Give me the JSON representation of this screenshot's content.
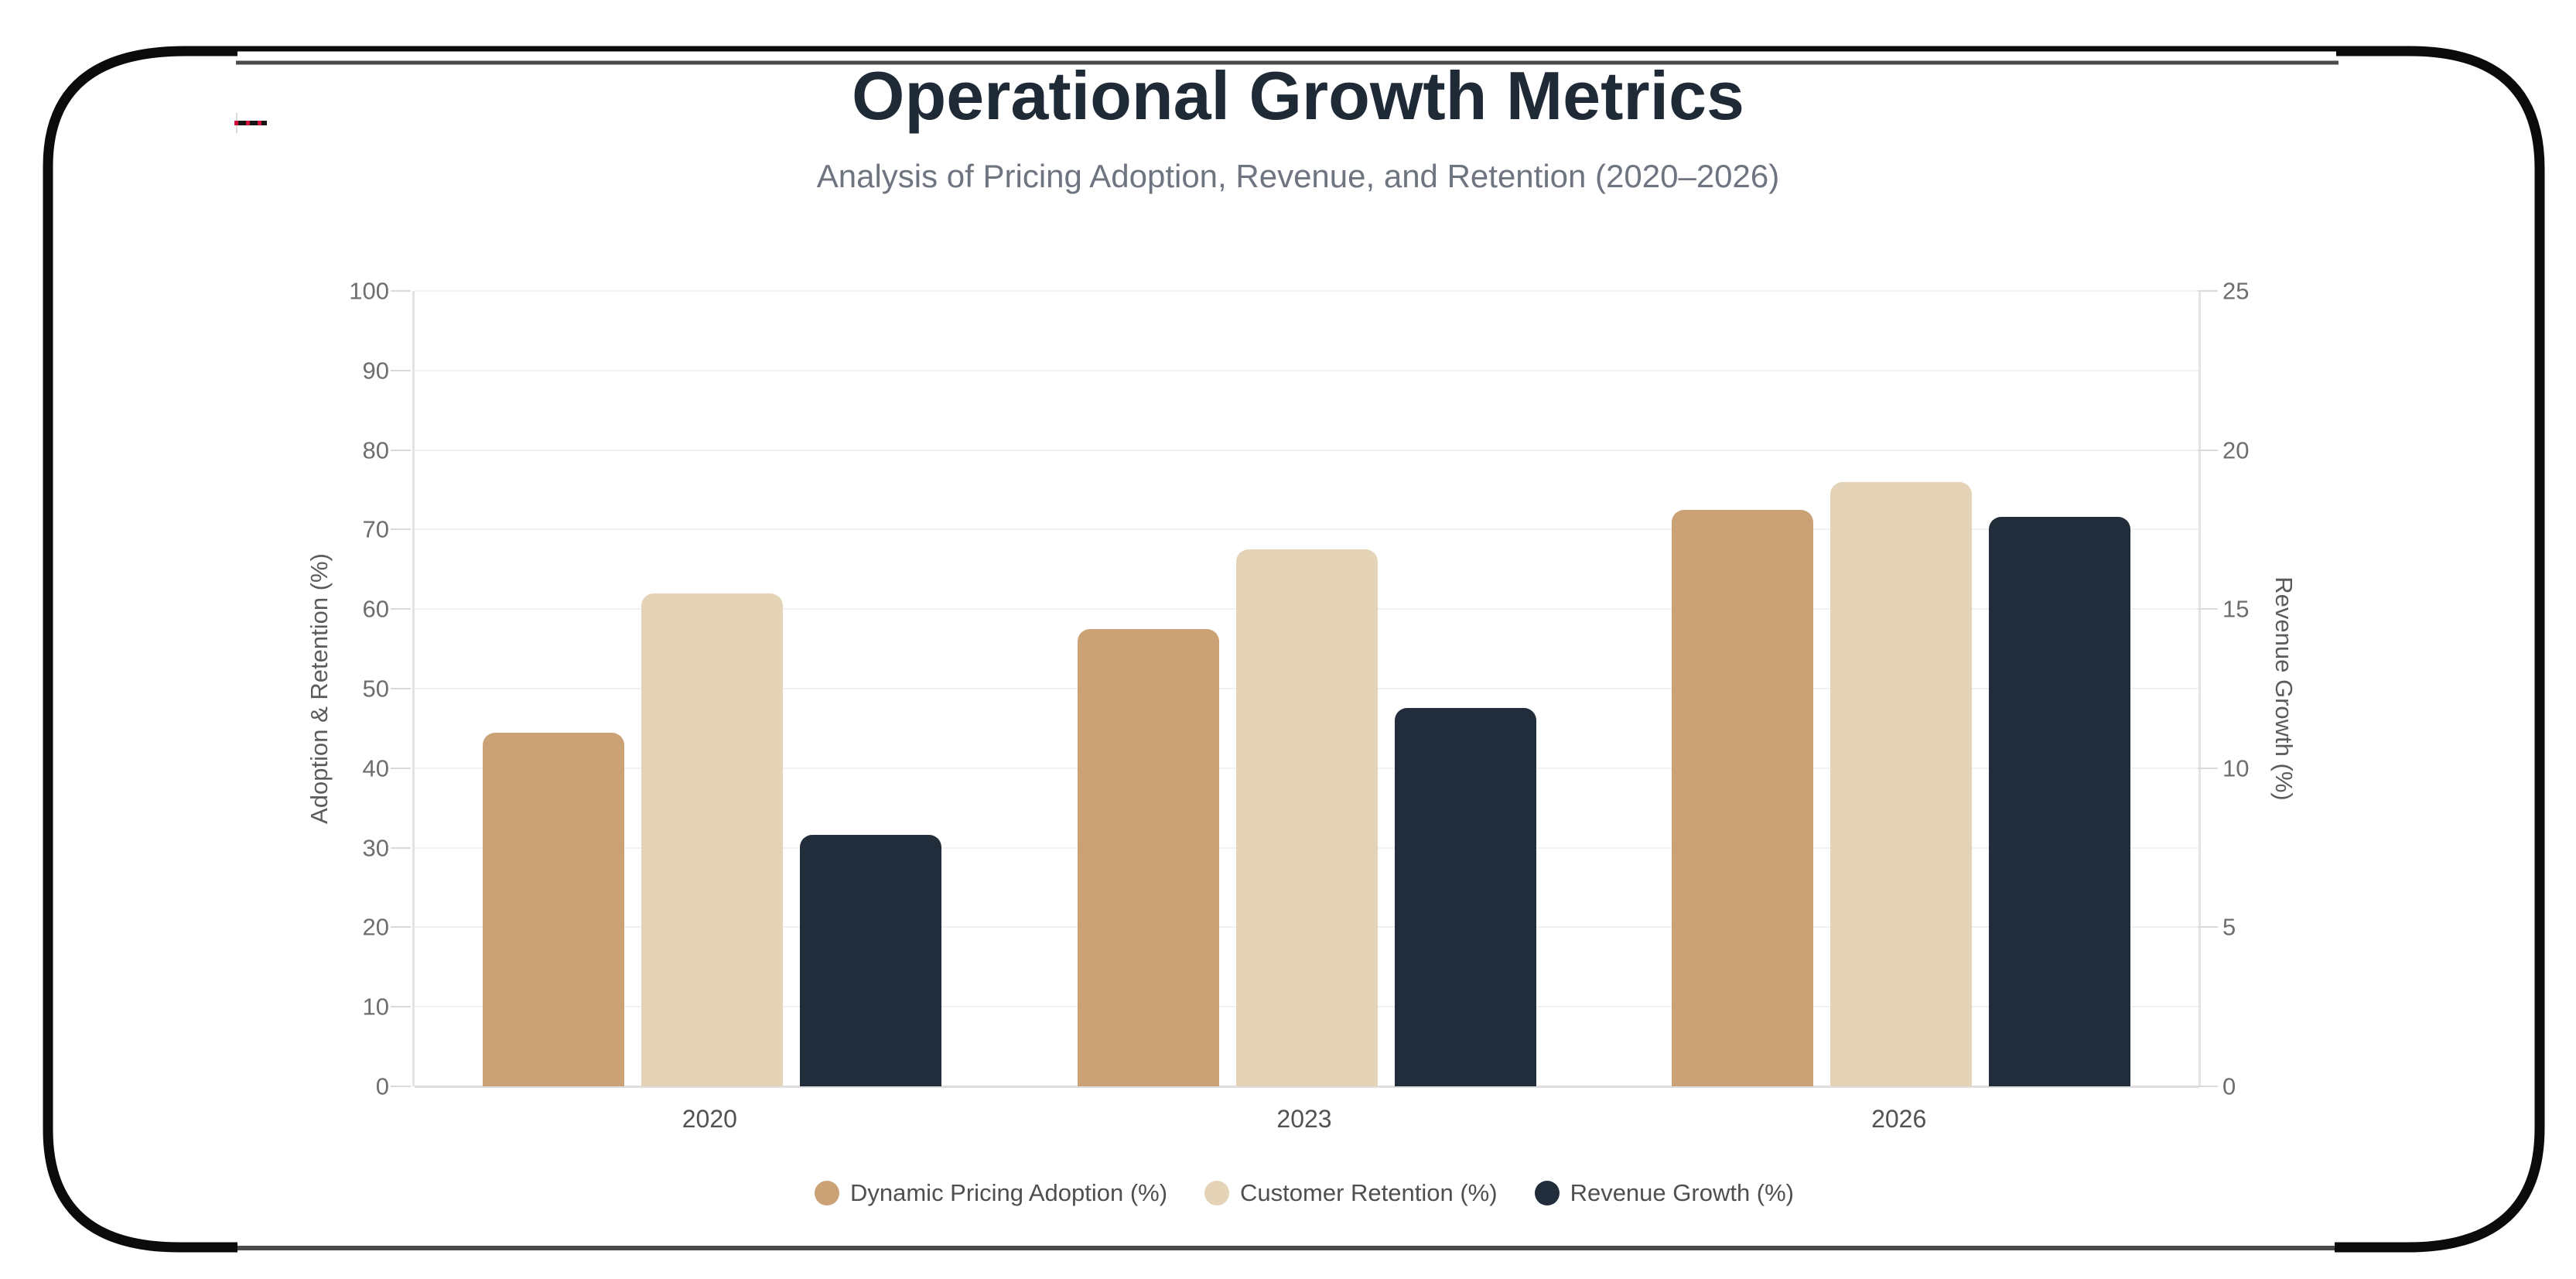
{
  "page": {
    "title": "Operational Growth Metrics",
    "subtitle": "Analysis of Pricing Adoption, Revenue, and Retention (2020–2026)"
  },
  "chart_data": {
    "type": "bar",
    "title": "Operational Growth Metrics",
    "subtitle": "Analysis of Pricing Adoption, Revenue, and Retention (2020–2026)",
    "categories": [
      "2020",
      "2023",
      "2026"
    ],
    "series": [
      {
        "name": "Dynamic Pricing Adoption (%)",
        "axis": "left",
        "color": "#cba176",
        "values": [
          44.5,
          57.5,
          72.5
        ]
      },
      {
        "name": "Customer Retention (%)",
        "axis": "left",
        "color": "#e5d3b7",
        "values": [
          62,
          67.5,
          76
        ]
      },
      {
        "name": "Revenue Growth (%)",
        "axis": "right",
        "color": "#212d3b",
        "values": [
          7.9,
          11.9,
          17.9
        ]
      }
    ],
    "left_axis": {
      "title": "Adoption & Retention (%)",
      "min": 0,
      "max": 100,
      "step": 10,
      "ticks": [
        0,
        10,
        20,
        30,
        40,
        50,
        60,
        70,
        80,
        90,
        100
      ]
    },
    "right_axis": {
      "title": "Revenue Growth (%)",
      "min": 0,
      "max": 25,
      "step": 5,
      "ticks": [
        0,
        5,
        10,
        15,
        20,
        25
      ]
    },
    "grid": true,
    "legend_position": "bottom"
  },
  "frame": {
    "stroke_color": "#0b0b0b",
    "inner_line_color": "#4a4a4a",
    "accent_mark_color": "#d01039"
  }
}
